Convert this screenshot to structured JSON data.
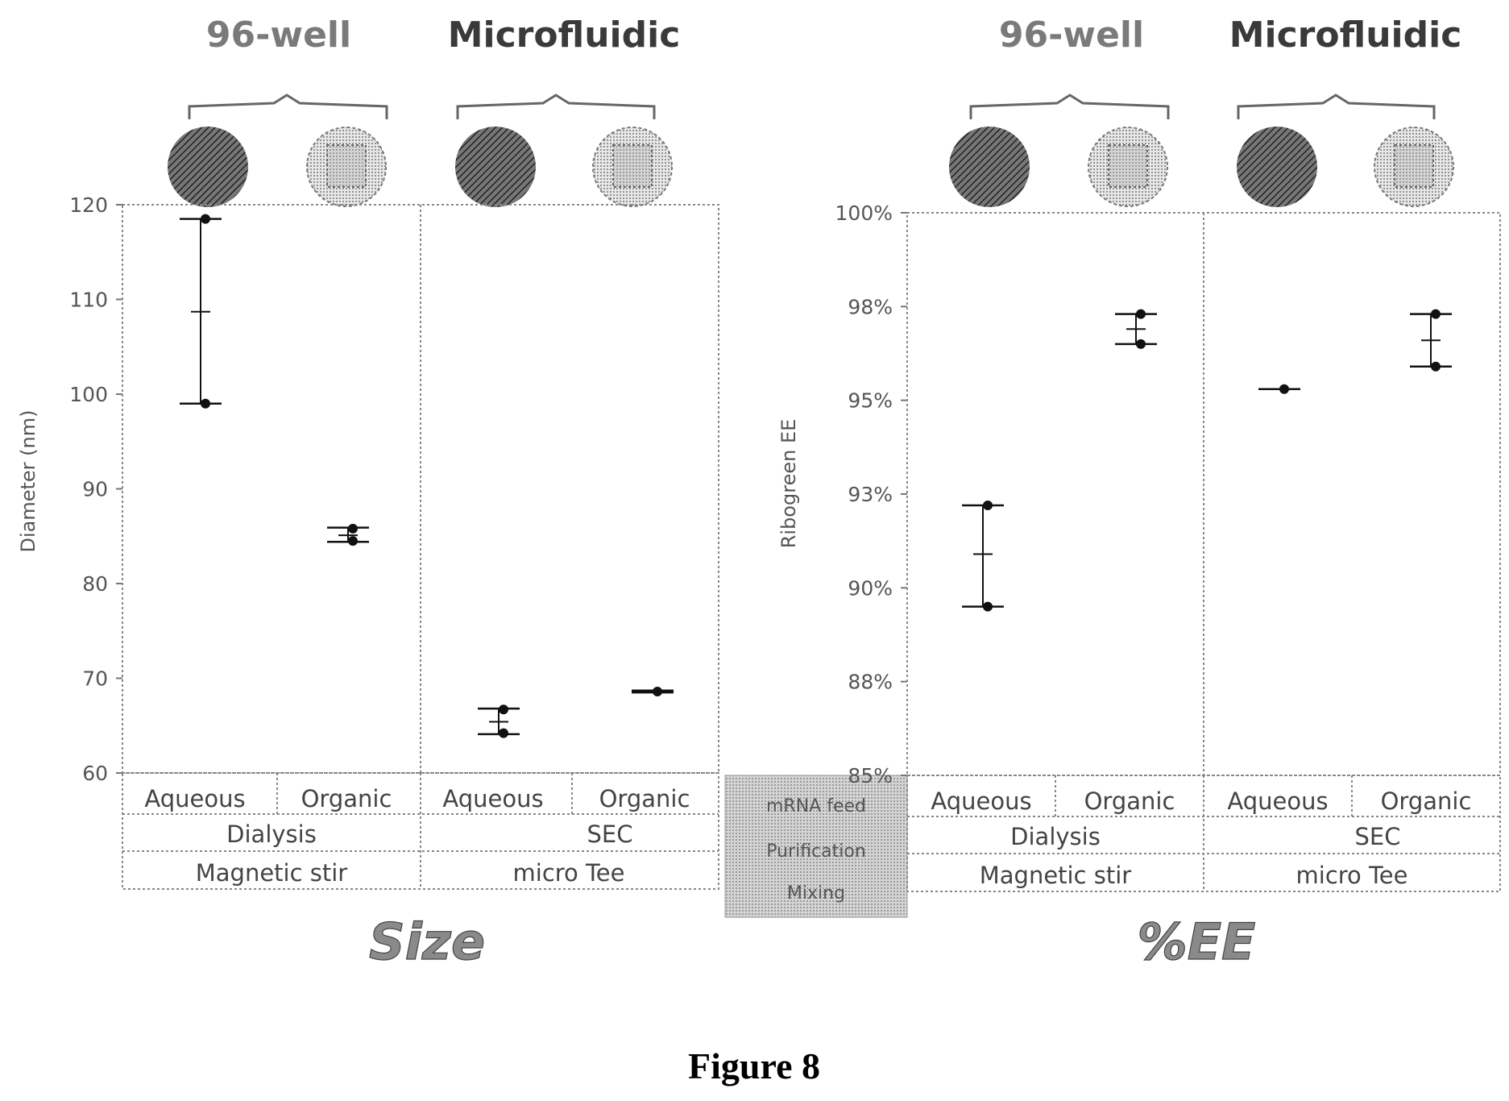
{
  "caption": "Figure 8",
  "row_labels": {
    "mrna_feed": "mRNA feed",
    "purification": "Purification",
    "mixing": "Mixing"
  },
  "colors": {
    "aqueous_fill": "#555555",
    "organic_fill": "#c8c8c8",
    "grid": "#888888",
    "marker": "#111111",
    "row_label_bg": "#bdbdbd"
  },
  "chart_data": [
    {
      "type": "scatter",
      "panel_label": "Size",
      "ylabel": "Diameter (nm)",
      "ylim": [
        60,
        120
      ],
      "yticks": [
        "60",
        "70",
        "80",
        "90",
        "100",
        "110",
        "120"
      ],
      "headers": [
        "96-well",
        "Microfluidic"
      ],
      "feed_labels": [
        "Aqueous",
        "Organic",
        "Aqueous",
        "Organic"
      ],
      "purification_labels": [
        "Dialysis",
        "SEC"
      ],
      "mixing_labels": [
        "Magnetic stir",
        "micro Tee"
      ],
      "grid": true,
      "points": [
        {
          "group": "96-well",
          "feed": "Aqueous",
          "values": [
            118.5,
            99.0
          ],
          "mean": 108.7,
          "error_low": 99.0,
          "error_high": 118.5
        },
        {
          "group": "96-well",
          "feed": "Organic",
          "values": [
            85.8,
            84.5
          ],
          "mean": 85.1,
          "error_low": 84.4,
          "error_high": 85.9
        },
        {
          "group": "Microfluidic",
          "feed": "Aqueous",
          "values": [
            66.7,
            64.2
          ],
          "mean": 65.4,
          "error_low": 64.1,
          "error_high": 66.8
        },
        {
          "group": "Microfluidic",
          "feed": "Organic",
          "values": [
            68.6
          ],
          "mean": 68.6,
          "error_low": 68.5,
          "error_high": 68.7
        }
      ]
    },
    {
      "type": "scatter",
      "panel_label": "%EE",
      "ylabel": "Ribogreen EE",
      "ylim": [
        85,
        100
      ],
      "yticks": [
        "85%",
        "88%",
        "90%",
        "93%",
        "95%",
        "98%",
        "100%"
      ],
      "headers": [
        "96-well",
        "Microfluidic"
      ],
      "feed_labels": [
        "Aqueous",
        "Organic",
        "Aqueous",
        "Organic"
      ],
      "purification_labels": [
        "Dialysis",
        "SEC"
      ],
      "mixing_labels": [
        "Magnetic stir",
        "micro Tee"
      ],
      "grid": true,
      "points": [
        {
          "group": "96-well",
          "feed": "Aqueous",
          "values": [
            92.2,
            89.5
          ],
          "mean": 90.9,
          "error_low": 89.5,
          "error_high": 92.2
        },
        {
          "group": "96-well",
          "feed": "Organic",
          "values": [
            97.3,
            96.5
          ],
          "mean": 96.9,
          "error_low": 96.5,
          "error_high": 97.3
        },
        {
          "group": "Microfluidic",
          "feed": "Aqueous",
          "values": [
            95.3
          ],
          "mean": 95.3,
          "error_low": 95.3,
          "error_high": 95.3
        },
        {
          "group": "Microfluidic",
          "feed": "Organic",
          "values": [
            97.3,
            95.9
          ],
          "mean": 96.6,
          "error_low": 95.9,
          "error_high": 97.3
        }
      ]
    }
  ]
}
